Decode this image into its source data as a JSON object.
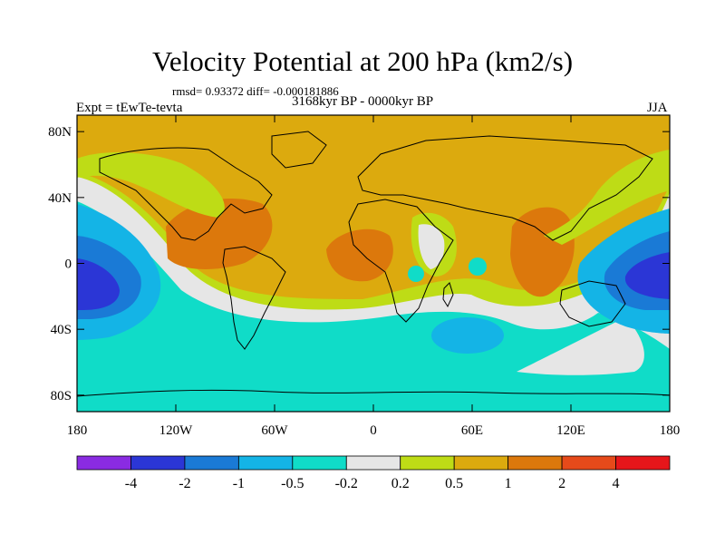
{
  "chart_data": {
    "type": "heatmap",
    "projection": "cylindrical equidistant world map with coastlines",
    "title": "Velocity Potential at 200 hPa (km2/s)",
    "stats": "rmsd= 0.93372 diff= -0.000181886",
    "experiment": "Expt = tEwTe-tevta",
    "period": "3168kyr BP - 0000kyr BP",
    "season": "JJA",
    "x_ticks": [
      "180",
      "120W",
      "60W",
      "0",
      "60E",
      "120E",
      "180"
    ],
    "x_tick_values": [
      -180,
      -120,
      -60,
      0,
      60,
      120,
      180
    ],
    "y_ticks": [
      "80N",
      "40N",
      "0",
      "40S",
      "80S"
    ],
    "y_tick_values": [
      80,
      40,
      0,
      -40,
      -80
    ],
    "xlim": [
      -180,
      180
    ],
    "ylim": [
      -90,
      90
    ],
    "colorbar": {
      "colors": [
        "#8a2be2",
        "#2b36d6",
        "#1a7ad6",
        "#14b4e6",
        "#10dcc8",
        "#e6e6e6",
        "#bedc16",
        "#dcaa0e",
        "#dc780c",
        "#e64a1a",
        "#e6161a"
      ],
      "labels": [
        "-4",
        "-2",
        "-1",
        "-0.5",
        "-0.2",
        "0.2",
        "0.5",
        "1",
        "2",
        "4"
      ]
    },
    "features": [
      {
        "name": "strong negative centre west Pacific",
        "lon": 145,
        "lat": 0,
        "value": -2.5
      },
      {
        "name": "strong negative centre east Pacific",
        "lon": -165,
        "lat": -15,
        "value": -2.5
      },
      {
        "name": "positive centre Americas",
        "lon": -90,
        "lat": 15,
        "value": 1.5
      },
      {
        "name": "positive centre Africa",
        "lon": -5,
        "lat": 5,
        "value": 1.4
      },
      {
        "name": "positive centre Indian Ocean",
        "lon": 95,
        "lat": 5,
        "value": 1.6
      },
      {
        "name": "negative centre south Indian Ocean",
        "lon": 50,
        "lat": -40,
        "value": -0.6
      }
    ]
  }
}
